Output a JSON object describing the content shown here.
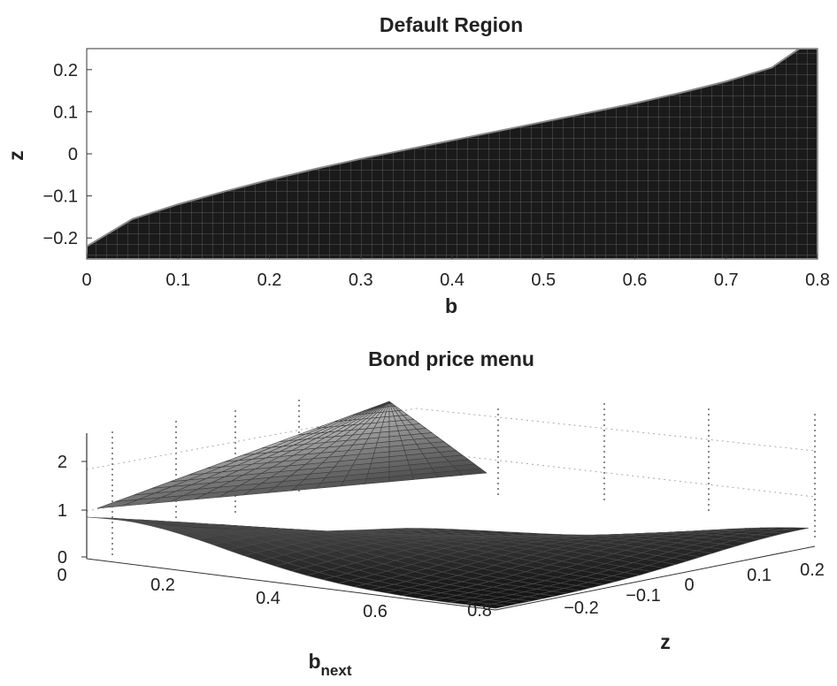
{
  "chart_data": [
    {
      "type": "heatmap",
      "title": "Default Region",
      "xlabel": "b",
      "ylabel": "z",
      "xlim": [
        0,
        0.8
      ],
      "ylim": [
        -0.25,
        0.25
      ],
      "xticks": [
        "0",
        "0.1",
        "0.2",
        "0.3",
        "0.4",
        "0.5",
        "0.6",
        "0.7",
        "0.8"
      ],
      "yticks": [
        "0.2",
        "0.1",
        "0",
        "−0.1",
        "−0.2"
      ],
      "region_fill": "#1a1a1a",
      "boundary": {
        "b": [
          0.0,
          0.05,
          0.1,
          0.15,
          0.2,
          0.25,
          0.3,
          0.35,
          0.4,
          0.45,
          0.5,
          0.55,
          0.6,
          0.65,
          0.7,
          0.75,
          0.78
        ],
        "z": [
          -0.22,
          -0.155,
          -0.12,
          -0.09,
          -0.062,
          -0.036,
          -0.012,
          0.01,
          0.032,
          0.054,
          0.076,
          0.098,
          0.12,
          0.145,
          0.172,
          0.205,
          0.25
        ]
      }
    },
    {
      "type": "surface",
      "title": "Bond price menu",
      "xlabel": "b",
      "xlabel_sub": "next",
      "ylabel": "z",
      "zlim": [
        0,
        2.5
      ],
      "zticks": [
        "0",
        "1",
        "2"
      ],
      "xticks": [
        "0",
        "0.2",
        "0.4",
        "0.6",
        "0.8"
      ],
      "yticks": [
        "−0.2",
        "−0.1",
        "0",
        "0.1",
        "0.2"
      ],
      "peak_value": 2.4,
      "colormap": "gray"
    }
  ]
}
